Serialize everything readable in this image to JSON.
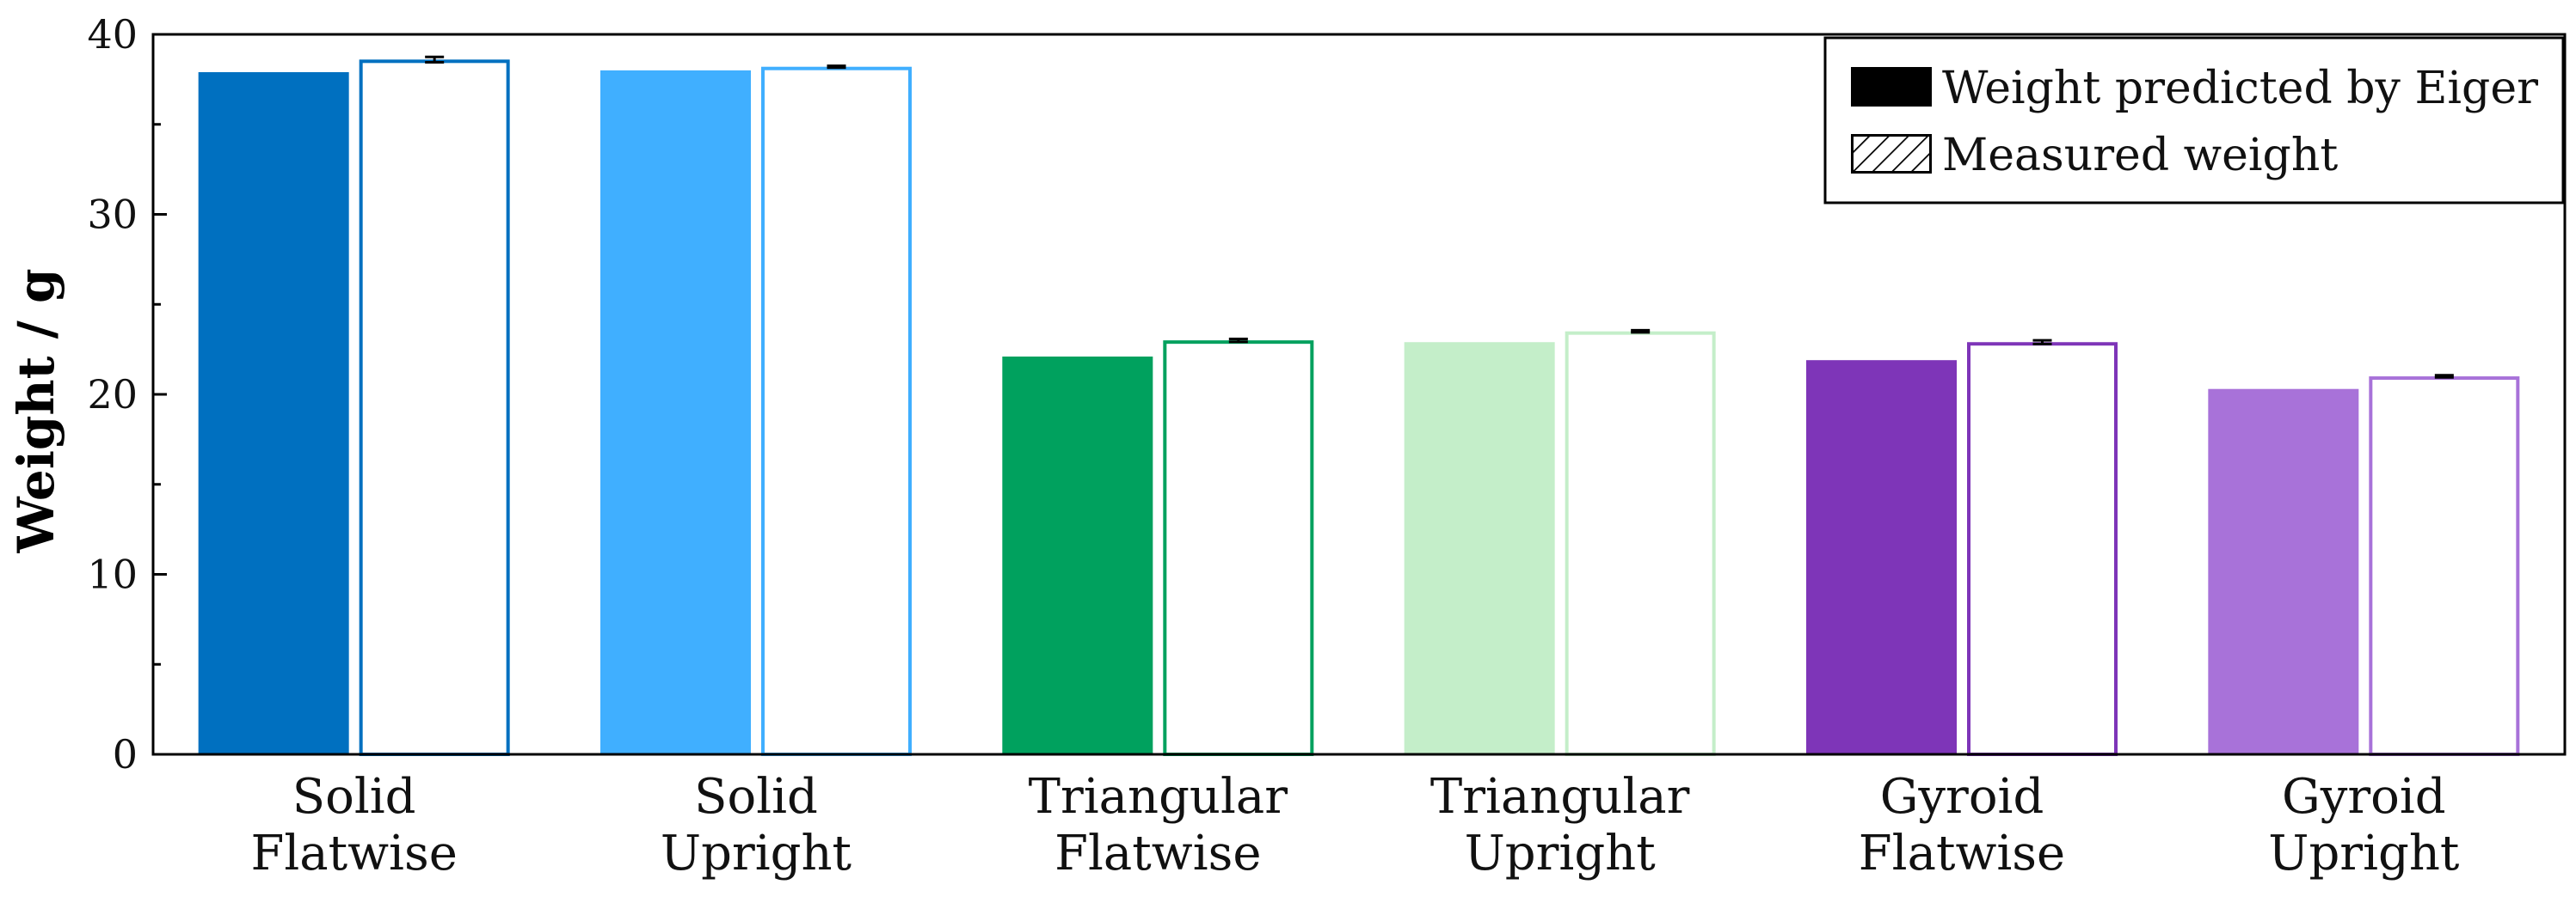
{
  "chart_data": {
    "type": "bar",
    "title": "",
    "xlabel": "",
    "ylabel": "Weight / g",
    "ylim": [
      0,
      40
    ],
    "yticks": [
      0,
      10,
      20,
      30,
      40
    ],
    "grid": false,
    "legend_position": "top-right",
    "categories": [
      [
        "Solid",
        "Flatwise"
      ],
      [
        "Solid",
        "Upright"
      ],
      [
        "Triangular",
        "Flatwise"
      ],
      [
        "Triangular",
        "Upright"
      ],
      [
        "Gyroid",
        "Flatwise"
      ],
      [
        "Gyroid",
        "Upright"
      ]
    ],
    "category_colors": [
      "#0070C0",
      "#40AFFF",
      "#00A15E",
      "#C4EEC9",
      "#7E35B8",
      "#A872D9"
    ],
    "series": [
      {
        "name": "Weight predicted by Eiger",
        "fill": "solid",
        "values": [
          37.9,
          38.0,
          22.1,
          22.9,
          21.9,
          20.3
        ]
      },
      {
        "name": "Measured weight",
        "fill": "hatched",
        "values": [
          38.6,
          38.2,
          23.0,
          23.5,
          22.9,
          21.0
        ],
        "errors": [
          0.15,
          0.05,
          0.08,
          0.06,
          0.1,
          0.06
        ]
      }
    ]
  }
}
